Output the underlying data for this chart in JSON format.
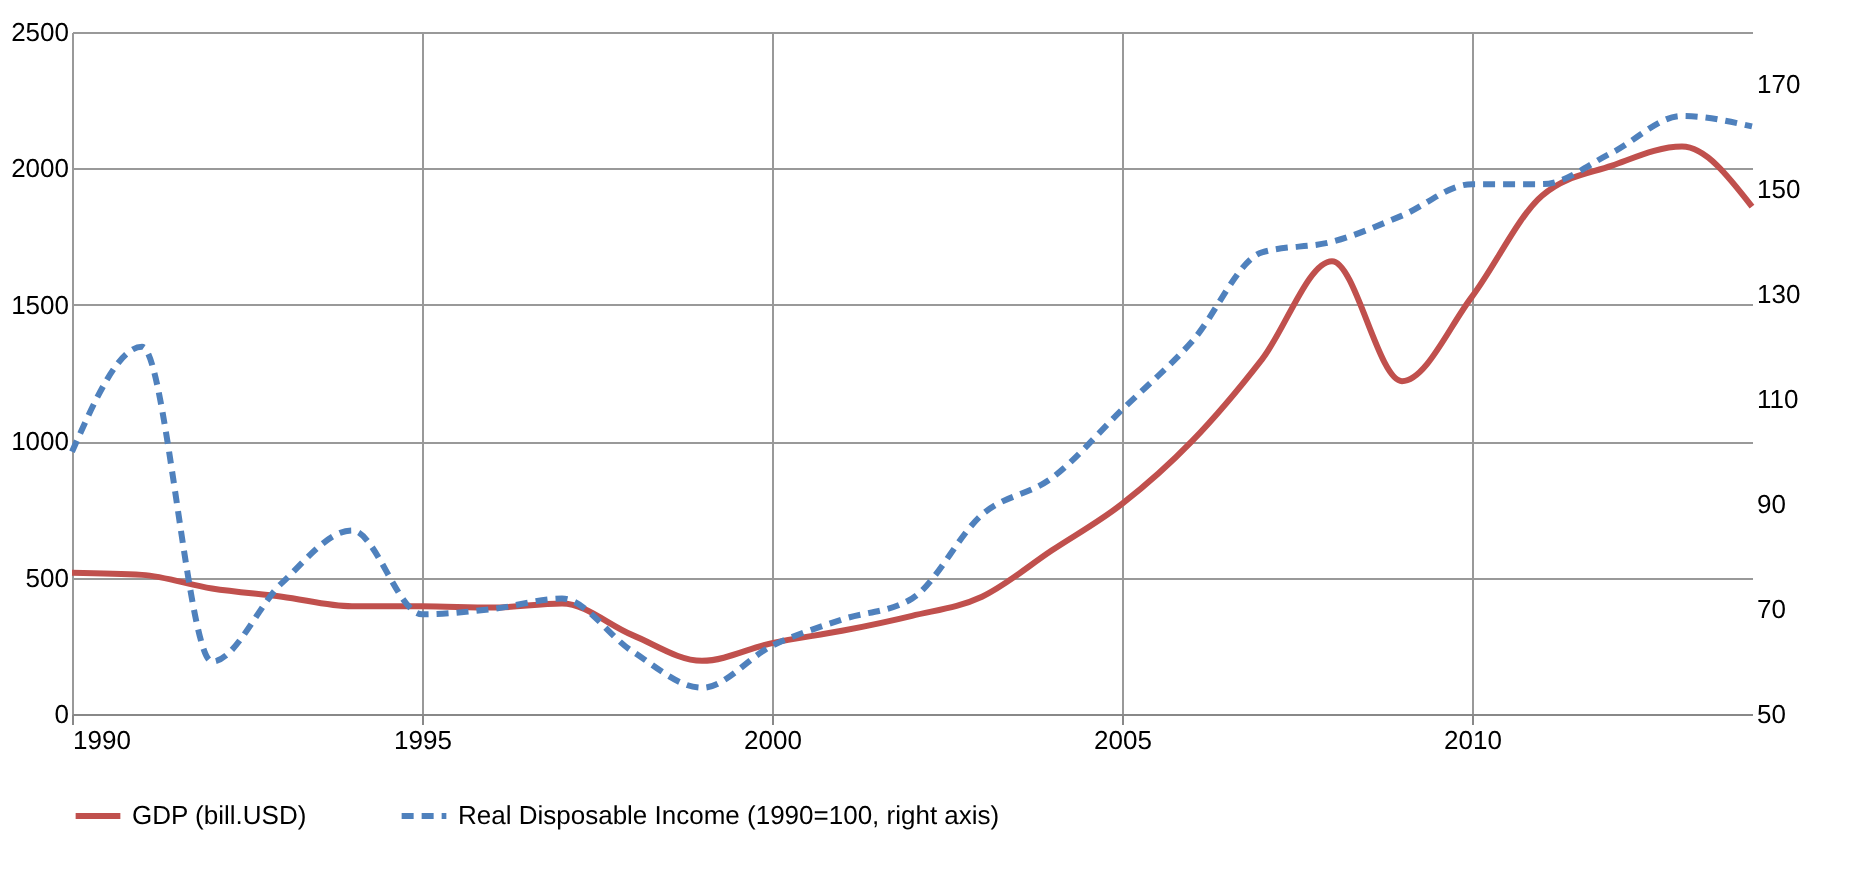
{
  "chart_data": {
    "type": "line",
    "x": [
      1990,
      1991,
      1992,
      1993,
      1994,
      1995,
      1996,
      1997,
      1998,
      1999,
      2000,
      2001,
      2002,
      2003,
      2004,
      2005,
      2006,
      2007,
      2008,
      2009,
      2010,
      2011,
      2012,
      2013,
      2014
    ],
    "series": [
      {
        "name": "GDP (bill.USD)",
        "color": "#c0504d",
        "line_style": "solid",
        "values": [
          518,
          510,
          460,
          430,
          395,
          395,
          390,
          405,
          290,
          195,
          260,
          305,
          360,
          430,
          600,
          770,
          1000,
          1300,
          1660,
          1220,
          1530,
          1900,
          2010,
          2080,
          1860
        ]
      },
      {
        "name": "Real Disposable Income (1990=100, right axis)",
        "color": "#4f81bd",
        "line_style": "dashed",
        "axis": "y2",
        "values": [
          100,
          120,
          60,
          75,
          85,
          69,
          70,
          72,
          62,
          55,
          63,
          68,
          72,
          88,
          95,
          108,
          121,
          138,
          140,
          145,
          151,
          151,
          157,
          164,
          162
        ]
      }
    ],
    "xlim": [
      1990,
      2014
    ],
    "xticks": [
      1990,
      1995,
      2000,
      2005,
      2010
    ],
    "ylim": [
      0,
      2500
    ],
    "yticks": [
      0,
      500,
      1000,
      1500,
      2000,
      2500
    ],
    "y2lim": [
      50,
      180
    ],
    "y2ticks": [
      50,
      70,
      90,
      110,
      130,
      150,
      170
    ],
    "grid": true,
    "legend": "bottom"
  }
}
